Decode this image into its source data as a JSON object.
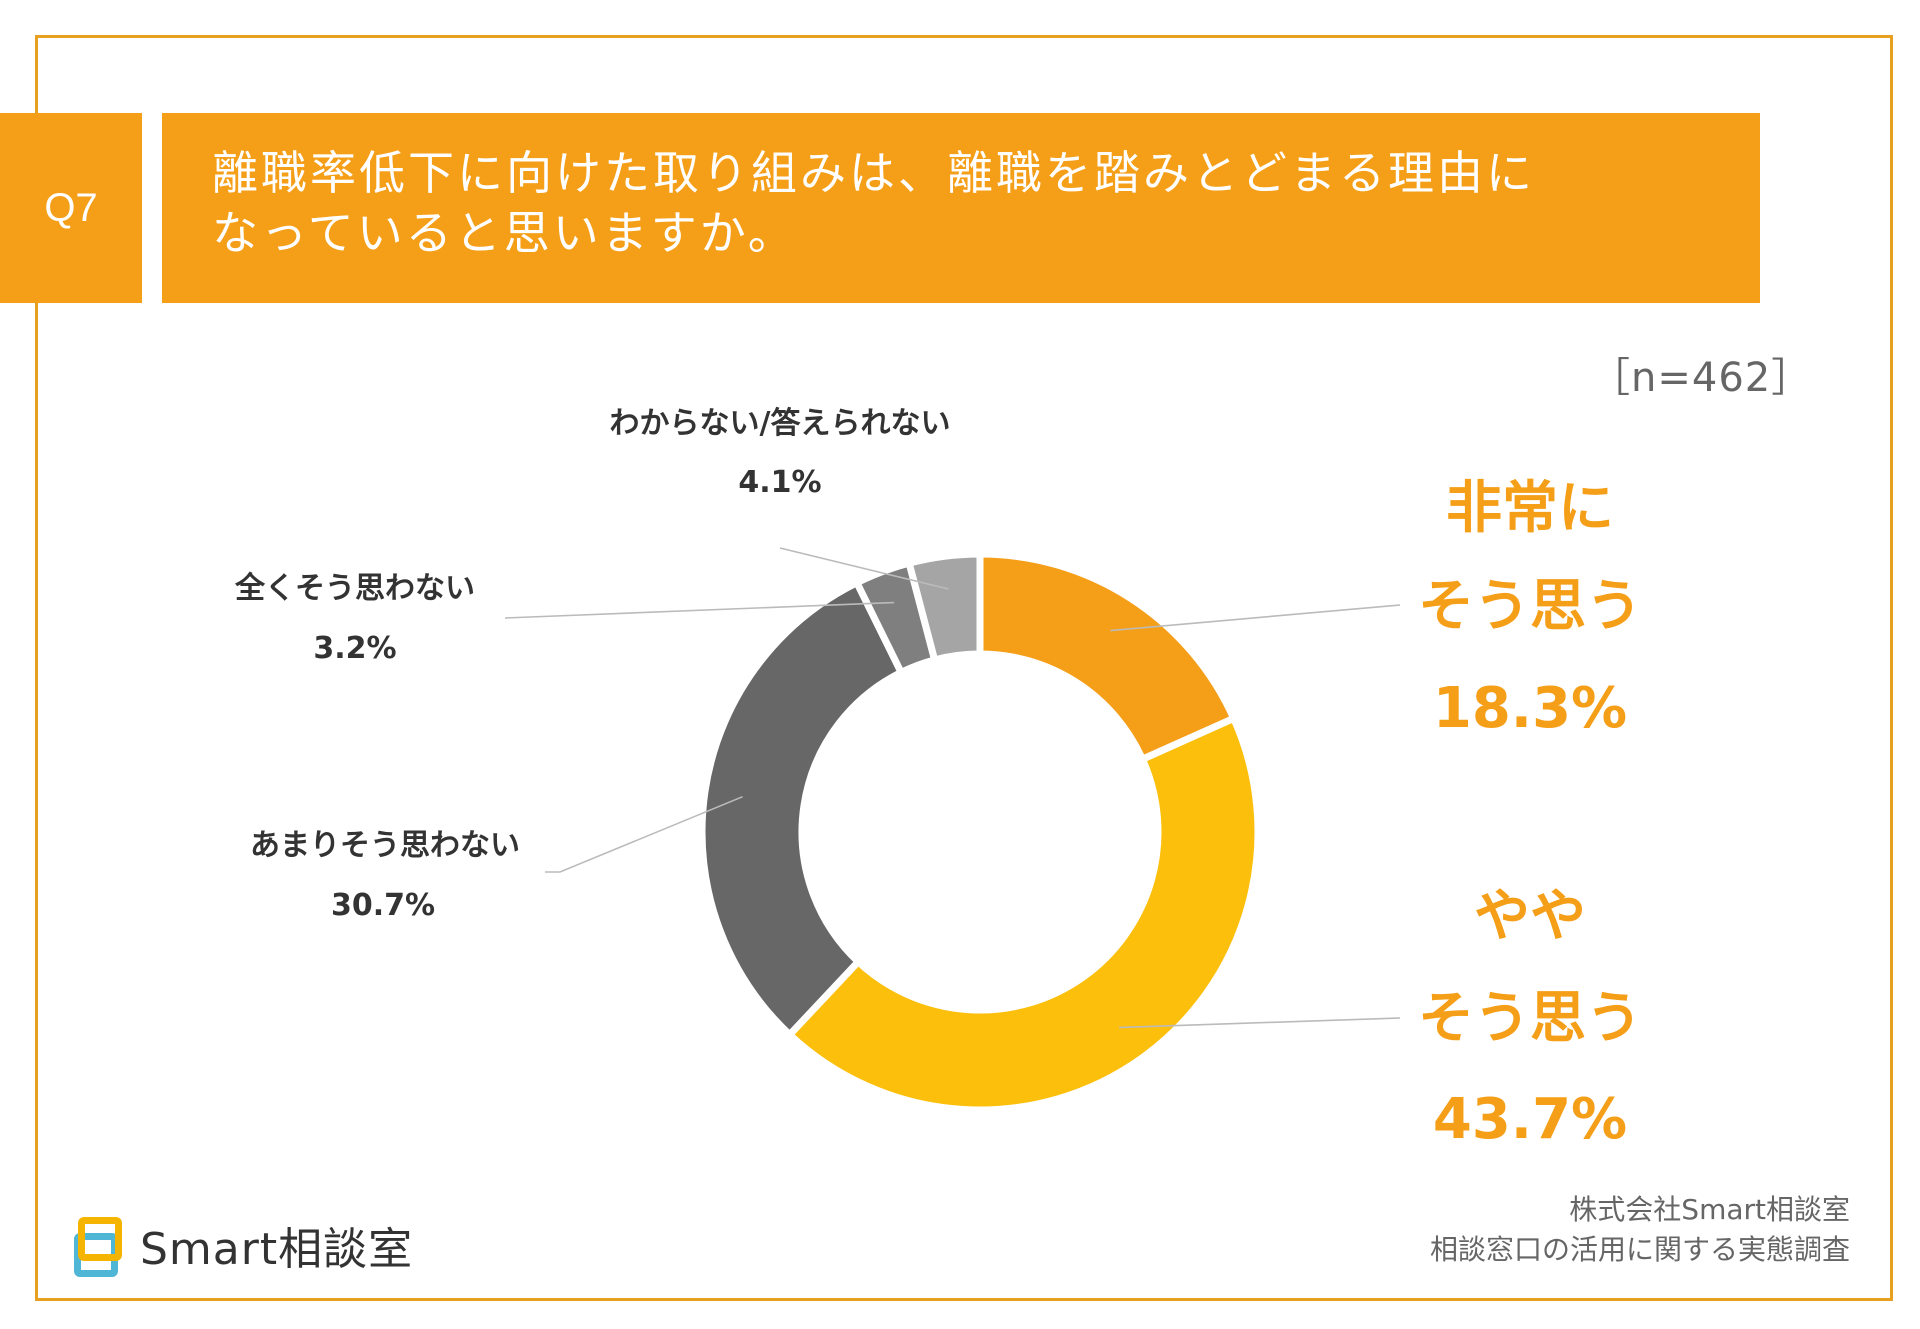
{
  "question": {
    "number": "Q7",
    "title_line1": "離職率低下に向けた取り組みは、離職を踏みとどまる理由に",
    "title_line2": "なっていると思いますか。"
  },
  "sample": "［n=462］",
  "chart_data": {
    "type": "pie",
    "variant": "donut",
    "title": "離職率低下に向けた取り組みは、離職を踏みとどまる理由になっていると思いますか。",
    "sample_size": 462,
    "slices": [
      {
        "label": "非常にそう思う",
        "value": 18.3,
        "value_label": "18.3%",
        "color": "#f59e18"
      },
      {
        "label": "ややそう思う",
        "value": 43.7,
        "value_label": "43.7%",
        "color": "#fbbf0c"
      },
      {
        "label": "あまりそう思わない",
        "value": 30.7,
        "value_label": "30.7%",
        "color": "#676767"
      },
      {
        "label": "全くそう思わない",
        "value": 3.2,
        "value_label": "3.2%",
        "color": "#7f7f7f"
      },
      {
        "label": "わからない/答えられない",
        "value": 4.1,
        "value_label": "4.1%",
        "color": "#a5a5a5"
      }
    ],
    "callouts": {
      "s0": [
        "非常に",
        "そう思う"
      ],
      "s1": [
        "やや",
        "そう思う"
      ]
    },
    "label_color_big": "#f59e18",
    "label_color_small": "#333333",
    "leader_color": "#bbbbbb"
  },
  "logo": {
    "text": "Smart相談室"
  },
  "credit": {
    "line1": "株式会社Smart相談室",
    "line2": "相談窓口の活用に関する実態調査"
  },
  "colors": {
    "accent": "#f59e18",
    "border": "#e8a020"
  }
}
